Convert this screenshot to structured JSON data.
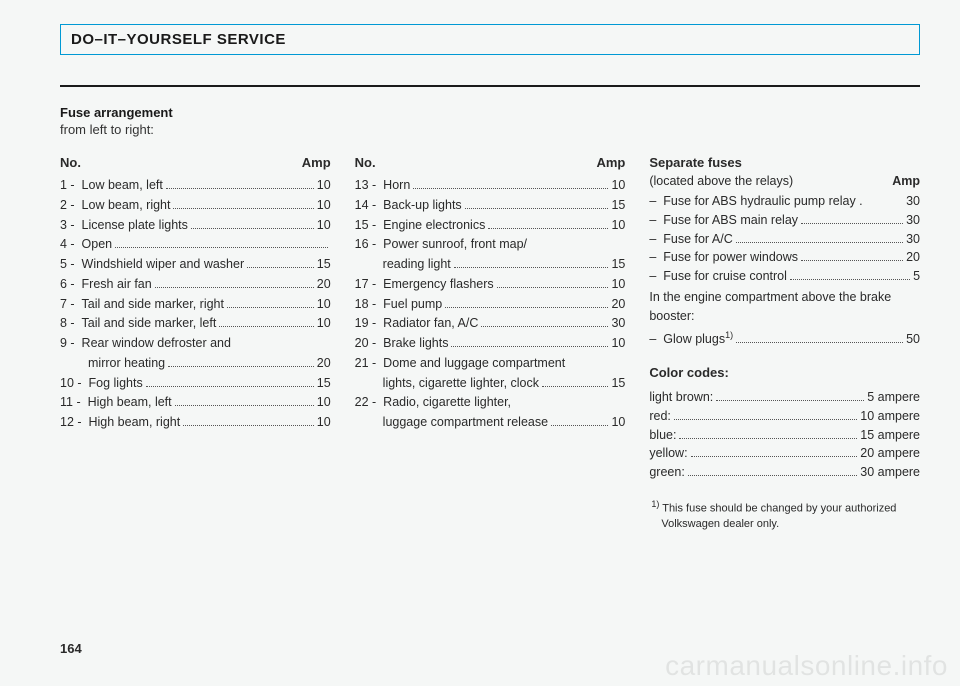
{
  "header": "DO–IT–YOURSELF SERVICE",
  "section_title": "Fuse arrangement",
  "subtitle": "from left to right:",
  "col_header_no": "No.",
  "col_header_amp": "Amp",
  "left_fuses": [
    {
      "n": "1 -",
      "label": "Low beam, left",
      "amp": "10"
    },
    {
      "n": "2 -",
      "label": "Low beam, right",
      "amp": "10"
    },
    {
      "n": "3 -",
      "label": "License plate lights",
      "amp": "10"
    },
    {
      "n": "4 -",
      "label": "Open",
      "amp": ""
    },
    {
      "n": "5 -",
      "label": "Windshield wiper and washer",
      "amp": "15"
    },
    {
      "n": "6 -",
      "label": "Fresh air fan",
      "amp": "20"
    },
    {
      "n": "7 -",
      "label": "Tail and side marker, right",
      "amp": "10"
    },
    {
      "n": "8 -",
      "label": "Tail and side marker, left",
      "amp": "10"
    },
    {
      "n": "9 -",
      "label": "Rear window defroster and",
      "amp": null
    },
    {
      "n": "",
      "label": "mirror heating",
      "amp": "20",
      "cont": true
    },
    {
      "n": "10 -",
      "label": "Fog lights",
      "amp": "15"
    },
    {
      "n": "11 -",
      "label": "High beam, left",
      "amp": "10"
    },
    {
      "n": "12 -",
      "label": "High beam, right",
      "amp": "10"
    }
  ],
  "mid_fuses": [
    {
      "n": "13 -",
      "label": "Horn",
      "amp": "10"
    },
    {
      "n": "14 -",
      "label": "Back-up lights",
      "amp": "15"
    },
    {
      "n": "15 -",
      "label": "Engine electronics",
      "amp": "10"
    },
    {
      "n": "16 -",
      "label": "Power sunroof, front map/",
      "amp": null
    },
    {
      "n": "",
      "label": "reading light",
      "amp": "15",
      "cont": true
    },
    {
      "n": "17 -",
      "label": "Emergency flashers",
      "amp": "10"
    },
    {
      "n": "18 -",
      "label": "Fuel pump",
      "amp": "20"
    },
    {
      "n": "19 -",
      "label": "Radiator fan, A/C",
      "amp": "30"
    },
    {
      "n": "20 -",
      "label": "Brake lights",
      "amp": "10"
    },
    {
      "n": "21 -",
      "label": "Dome and luggage compartment",
      "amp": null
    },
    {
      "n": "",
      "label": "lights, cigarette lighter, clock",
      "amp": "15",
      "cont": true
    },
    {
      "n": "22 -",
      "label": "Radio, cigarette lighter,",
      "amp": null
    },
    {
      "n": "",
      "label": "luggage compartment release",
      "amp": "10",
      "cont": true
    }
  ],
  "separate_title": "Separate fuses",
  "separate_sub": "(located above the relays)",
  "separate_amp": "Amp",
  "separate_fuses": [
    {
      "label": "Fuse for ABS hydraulic pump relay",
      "amp": "30",
      "dots": false,
      "dotlabel": " ."
    },
    {
      "label": "Fuse for ABS main relay",
      "amp": "30",
      "dots": true
    },
    {
      "label": "Fuse for A/C",
      "amp": "30",
      "dots": true
    },
    {
      "label": "Fuse for power windows",
      "amp": "20",
      "dots": true
    },
    {
      "label": "Fuse for cruise control",
      "amp": "5",
      "dots": true
    }
  ],
  "engine_text1": "In the engine compartment above the brake",
  "engine_text2": "booster:",
  "glow_label": "Glow plugs",
  "glow_sup": "1)",
  "glow_amp": "50",
  "color_title": "Color codes:",
  "colors": [
    {
      "name": "light brown:",
      "val": "5 ampere"
    },
    {
      "name": "red:",
      "val": "10 ampere"
    },
    {
      "name": "blue:",
      "val": "15 ampere"
    },
    {
      "name": "yellow:",
      "val": "20 ampere"
    },
    {
      "name": "green:",
      "val": "30 ampere"
    }
  ],
  "footnote_marker": "1)",
  "footnote_text": "This fuse should be changed by your authorized Volkswagen dealer only.",
  "page_num": "164",
  "watermark": "carmanualsonline.info"
}
